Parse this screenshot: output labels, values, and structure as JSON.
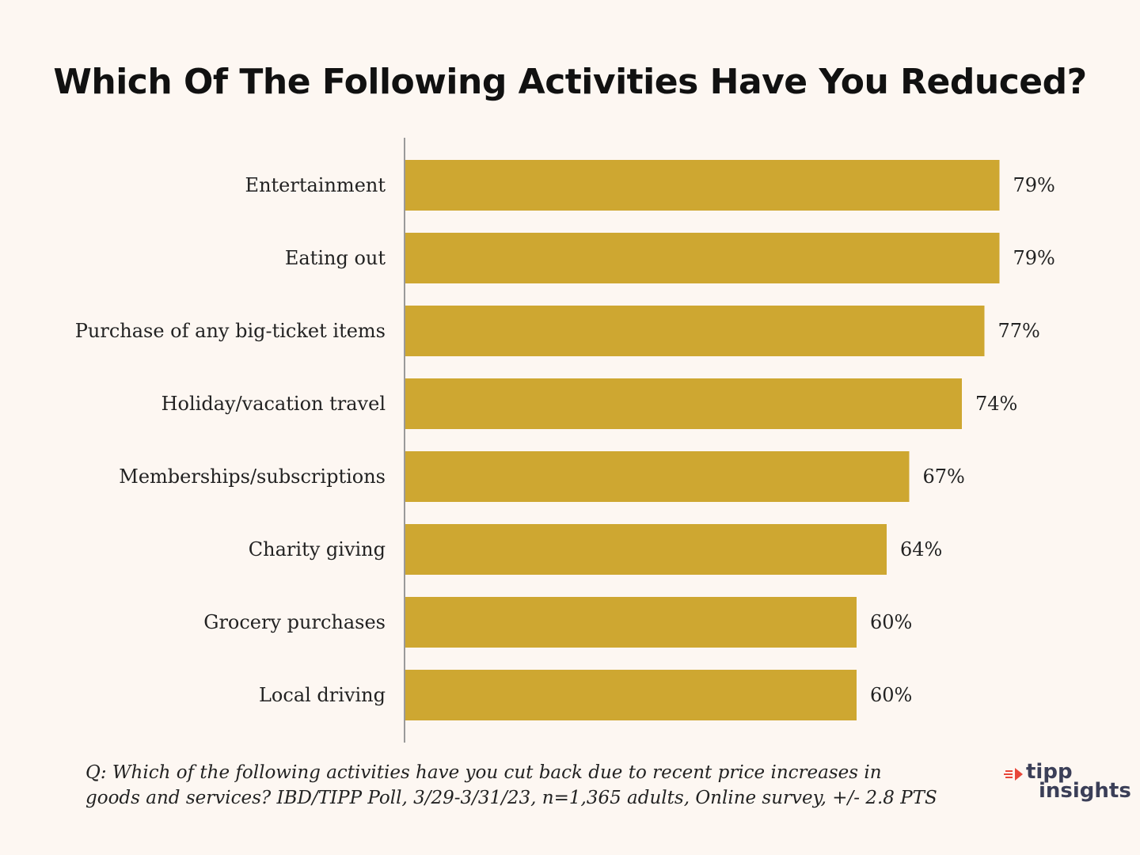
{
  "title": "Which Of The Following Activities Have You Reduced?",
  "footnote": {
    "line1": "Q:  Which of the following activities have you cut back due to recent price increases in",
    "line2": "goods and services? IBD/TIPP Poll, 3/29-3/31/23, n=1,365 adults, Online survey, +/- 2.8 PTS"
  },
  "logo": {
    "word1": "tipp",
    "word2": "insights",
    "mark_color": "#e8473a",
    "text_color": "#3b3f58"
  },
  "colors": {
    "bar": "#cea731",
    "axis": "#9a9a9a",
    "background": "#fdf7f2"
  },
  "chart_data": {
    "type": "bar",
    "orientation": "horizontal",
    "categories": [
      "Entertainment",
      "Eating out",
      "Purchase of any big-ticket items",
      "Holiday/vacation travel",
      "Memberships/subscriptions",
      "Charity giving",
      "Grocery purchases",
      "Local driving"
    ],
    "values": [
      79,
      79,
      77,
      74,
      67,
      64,
      60,
      60
    ],
    "value_labels": [
      "79%",
      "79%",
      "77%",
      "74%",
      "67%",
      "64%",
      "60%",
      "60%"
    ],
    "xlim": [
      0,
      100
    ],
    "grid": false,
    "legend": "none"
  }
}
